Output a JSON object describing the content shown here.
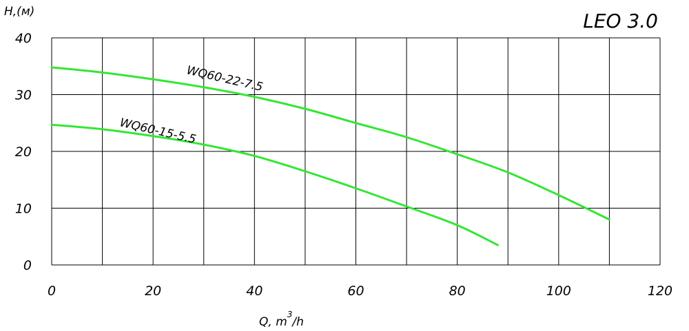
{
  "chart_data": {
    "type": "line",
    "title": "LEO 3.0",
    "xlabel": "Q, m",
    "xlabel_sup": "3",
    "xlabel_tail": "/h",
    "ylabel": "H,(м)",
    "xlim": [
      0,
      120
    ],
    "ylim": [
      0,
      40
    ],
    "xticks": [
      "0",
      "20",
      "40",
      "60",
      "80",
      "100",
      "120"
    ],
    "yticks": [
      "0",
      "10",
      "20",
      "30",
      "40"
    ],
    "grid": true,
    "series": [
      {
        "name": "WQ60-22-7.5",
        "color": "#33e633",
        "x": [
          0,
          10,
          20,
          30,
          40,
          50,
          60,
          70,
          80,
          90,
          100,
          110
        ],
        "y": [
          34.8,
          33.9,
          32.7,
          31.3,
          29.6,
          27.5,
          25.0,
          22.5,
          19.5,
          16.3,
          12.3,
          8.0
        ]
      },
      {
        "name": "WQ60-15-5.5",
        "color": "#33e633",
        "x": [
          0,
          10,
          20,
          30,
          40,
          50,
          60,
          70,
          80,
          88
        ],
        "y": [
          24.7,
          23.9,
          22.7,
          21.2,
          19.2,
          16.5,
          13.5,
          10.3,
          7.0,
          3.5
        ]
      }
    ]
  }
}
